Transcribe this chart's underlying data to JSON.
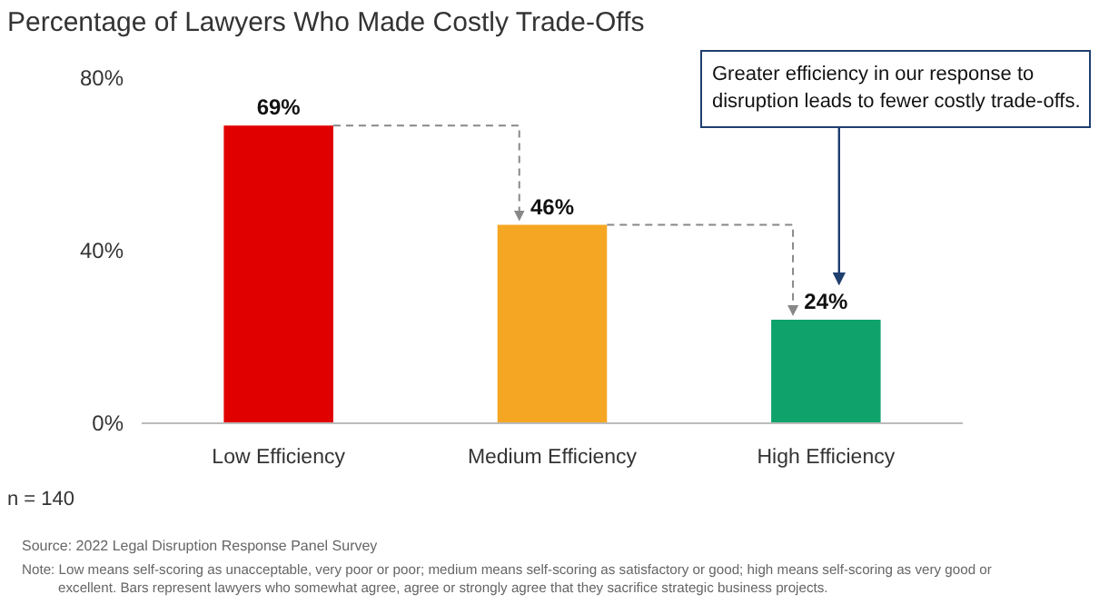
{
  "chart_data": {
    "type": "bar",
    "title": "Percentage of Lawyers Who Made Costly Trade-Offs",
    "categories": [
      "Low Efficiency",
      "Medium Efficiency",
      "High Efficiency"
    ],
    "values": [
      69,
      46,
      24
    ],
    "colors": [
      "#e00000",
      "#f5a623",
      "#0fa36b"
    ],
    "ylim": [
      0,
      80
    ],
    "yticks": [
      {
        "value": 0,
        "label": "0%"
      },
      {
        "value": 40,
        "label": "40%"
      },
      {
        "value": 80,
        "label": "80%"
      }
    ],
    "value_labels": [
      "69%",
      "46%",
      "24%"
    ],
    "grid": false,
    "annotations": [
      "Greater efficiency in our response to disruption leads to fewer costly trade-offs.",
      "n = 140",
      "Source: 2022 Legal Disruption Response Panel Survey",
      "Note: Low means self-scoring as unacceptable, very poor or poor; medium means self-scoring as satisfactory or good; high means self-scoring as very good or excellent. Bars represent lawyers who somewhat agree, agree or strongly agree that they sacrifice strategic business projects."
    ]
  }
}
